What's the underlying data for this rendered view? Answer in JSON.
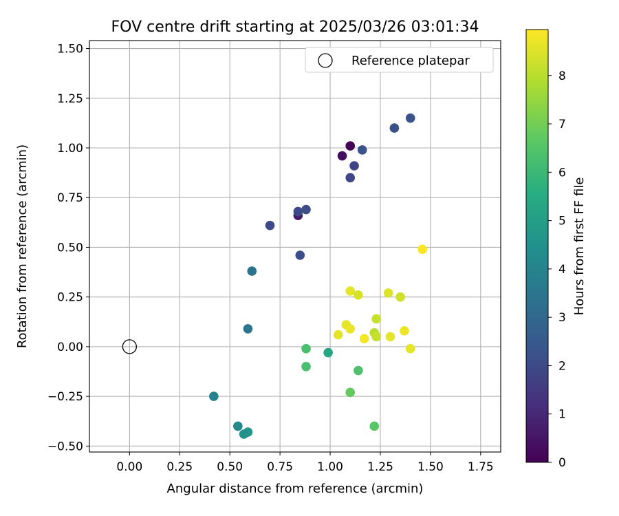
{
  "chart_data": {
    "type": "scatter",
    "title": "FOV centre drift starting at 2025/03/26 03:01:34",
    "xlabel": "Angular distance from reference (arcmin)",
    "ylabel": "Rotation from reference (arcmin)",
    "xlim": [
      -0.2,
      1.85
    ],
    "ylim": [
      -0.53,
      1.54
    ],
    "xticks": [
      "0.00",
      "0.25",
      "0.50",
      "0.75",
      "1.00",
      "1.25",
      "1.50",
      "1.75"
    ],
    "yticks": [
      "−0.50",
      "−0.25",
      "0.00",
      "0.25",
      "0.50",
      "0.75",
      "1.00",
      "1.25",
      "1.50"
    ],
    "grid": true,
    "legend": {
      "placement": "top-right",
      "label": "Reference platepar"
    },
    "reference_point": {
      "x": 0.0,
      "y": 0.0
    },
    "colorbar": {
      "label": "Hours from first FF file",
      "min": 0,
      "max": 8.95,
      "ticks": [
        "0",
        "1",
        "2",
        "3",
        "4",
        "5",
        "6",
        "7",
        "8"
      ],
      "colormap": "viridis"
    },
    "points": [
      {
        "x": 1.1,
        "y": 1.01,
        "h": 0.1
      },
      {
        "x": 1.06,
        "y": 0.96,
        "h": 0.3
      },
      {
        "x": 0.84,
        "y": 0.66,
        "h": 0.7
      },
      {
        "x": 1.12,
        "y": 0.91,
        "h": 1.8
      },
      {
        "x": 1.1,
        "y": 0.85,
        "h": 1.9
      },
      {
        "x": 0.7,
        "y": 0.61,
        "h": 2.0
      },
      {
        "x": 0.84,
        "y": 0.68,
        "h": 2.0
      },
      {
        "x": 0.88,
        "y": 0.69,
        "h": 2.1
      },
      {
        "x": 0.85,
        "y": 0.46,
        "h": 2.1
      },
      {
        "x": 1.16,
        "y": 0.99,
        "h": 2.3
      },
      {
        "x": 1.32,
        "y": 1.1,
        "h": 2.2
      },
      {
        "x": 1.4,
        "y": 1.15,
        "h": 2.2
      },
      {
        "x": 0.61,
        "y": 0.38,
        "h": 3.4
      },
      {
        "x": 0.59,
        "y": 0.09,
        "h": 3.5
      },
      {
        "x": 0.42,
        "y": -0.25,
        "h": 3.9
      },
      {
        "x": 0.54,
        "y": -0.4,
        "h": 4.2
      },
      {
        "x": 0.57,
        "y": -0.44,
        "h": 4.5
      },
      {
        "x": 0.59,
        "y": -0.43,
        "h": 4.6
      },
      {
        "x": 0.99,
        "y": -0.03,
        "h": 5.3
      },
      {
        "x": 0.88,
        "y": -0.01,
        "h": 6.3
      },
      {
        "x": 0.88,
        "y": -0.1,
        "h": 6.3
      },
      {
        "x": 1.14,
        "y": -0.12,
        "h": 6.4
      },
      {
        "x": 1.1,
        "y": -0.23,
        "h": 6.8
      },
      {
        "x": 1.22,
        "y": -0.4,
        "h": 6.6
      },
      {
        "x": 1.1,
        "y": 0.28,
        "h": 8.6
      },
      {
        "x": 1.14,
        "y": 0.26,
        "h": 8.4
      },
      {
        "x": 1.29,
        "y": 0.27,
        "h": 8.5
      },
      {
        "x": 1.35,
        "y": 0.25,
        "h": 8.3
      },
      {
        "x": 1.46,
        "y": 0.49,
        "h": 8.9
      },
      {
        "x": 1.23,
        "y": 0.14,
        "h": 8.2
      },
      {
        "x": 1.22,
        "y": 0.07,
        "h": 8.0
      },
      {
        "x": 1.23,
        "y": 0.05,
        "h": 8.2
      },
      {
        "x": 1.08,
        "y": 0.11,
        "h": 8.6
      },
      {
        "x": 1.1,
        "y": 0.09,
        "h": 8.7
      },
      {
        "x": 1.04,
        "y": 0.06,
        "h": 8.6
      },
      {
        "x": 1.17,
        "y": 0.04,
        "h": 8.8
      },
      {
        "x": 1.3,
        "y": 0.05,
        "h": 8.6
      },
      {
        "x": 1.37,
        "y": 0.08,
        "h": 8.7
      },
      {
        "x": 1.4,
        "y": -0.01,
        "h": 8.6
      }
    ]
  }
}
